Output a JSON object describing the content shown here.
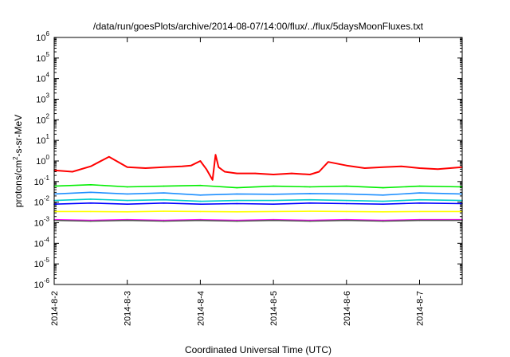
{
  "chart_data": {
    "type": "line",
    "title": "/data/run/goesPlots/archive/2014-08-07/14:00/flux/../flux/5daysMoonFluxes.txt",
    "xlabel": "Coordinated Universal Time (UTC)",
    "ylabel": {
      "prefix": "protons/cm",
      "superscript": "2",
      "suffix": "-s-sr-MeV"
    },
    "yscale": "log",
    "ylim": [
      1e-06,
      1000000.0
    ],
    "yticks": [
      {
        "base": "10",
        "exp": "-6",
        "value": 1e-06
      },
      {
        "base": "10",
        "exp": "-5",
        "value": 1e-05
      },
      {
        "base": "10",
        "exp": "-4",
        "value": 0.0001
      },
      {
        "base": "10",
        "exp": "-3",
        "value": 0.001
      },
      {
        "base": "10",
        "exp": "-2",
        "value": 0.01
      },
      {
        "base": "10",
        "exp": "-1",
        "value": 0.1
      },
      {
        "base": "10",
        "exp": "0",
        "value": 1
      },
      {
        "base": "10",
        "exp": "1",
        "value": 10
      },
      {
        "base": "10",
        "exp": "2",
        "value": 100
      },
      {
        "base": "10",
        "exp": "3",
        "value": 1000
      },
      {
        "base": "10",
        "exp": "4",
        "value": 10000
      },
      {
        "base": "10",
        "exp": "5",
        "value": 100000
      },
      {
        "base": "10",
        "exp": "6",
        "value": 1000000
      }
    ],
    "xlim": [
      "2014-08-02T00:00",
      "2014-08-07T14:00"
    ],
    "xticks": [
      {
        "label": "2014-8-2",
        "date": "2014-08-02"
      },
      {
        "label": "2014-8-3",
        "date": "2014-08-03"
      },
      {
        "label": "2014-8-4",
        "date": "2014-08-04"
      },
      {
        "label": "2014-8-5",
        "date": "2014-08-05"
      },
      {
        "label": "2014-8-6",
        "date": "2014-08-06"
      },
      {
        "label": "2014-8-7",
        "date": "2014-08-07"
      }
    ],
    "grid": false,
    "legend": "none",
    "series": [
      {
        "color": "#ff0000",
        "x": [
          "2014-08-02T00:00",
          "2014-08-02T06:00",
          "2014-08-02T12:00",
          "2014-08-02T18:00",
          "2014-08-03T00:00",
          "2014-08-03T06:00",
          "2014-08-03T12:00",
          "2014-08-03T18:00",
          "2014-08-03T21:00",
          "2014-08-04T00:00",
          "2014-08-04T02:00",
          "2014-08-04T04:00",
          "2014-08-04T05:00",
          "2014-08-04T06:00",
          "2014-08-04T08:00",
          "2014-08-04T12:00",
          "2014-08-04T18:00",
          "2014-08-05T00:00",
          "2014-08-05T06:00",
          "2014-08-05T12:00",
          "2014-08-05T15:00",
          "2014-08-05T18:00",
          "2014-08-06T00:00",
          "2014-08-06T06:00",
          "2014-08-06T12:00",
          "2014-08-06T18:00",
          "2014-08-07T00:00",
          "2014-08-07T06:00",
          "2014-08-07T14:00"
        ],
        "values": [
          0.35,
          0.3,
          0.55,
          1.6,
          0.5,
          0.45,
          0.5,
          0.55,
          0.6,
          1.0,
          0.4,
          0.12,
          2.0,
          0.5,
          0.3,
          0.25,
          0.25,
          0.22,
          0.25,
          0.22,
          0.3,
          0.9,
          0.6,
          0.45,
          0.5,
          0.55,
          0.45,
          0.4,
          0.5
        ]
      },
      {
        "color": "#00ee00",
        "x": [
          "2014-08-02T00:00",
          "2014-08-02T12:00",
          "2014-08-03T00:00",
          "2014-08-03T12:00",
          "2014-08-04T00:00",
          "2014-08-04T12:00",
          "2014-08-05T00:00",
          "2014-08-05T12:00",
          "2014-08-06T00:00",
          "2014-08-06T12:00",
          "2014-08-07T00:00",
          "2014-08-07T14:00"
        ],
        "values": [
          0.06,
          0.07,
          0.055,
          0.06,
          0.065,
          0.05,
          0.06,
          0.055,
          0.06,
          0.05,
          0.06,
          0.055
        ]
      },
      {
        "color": "#1e8fff",
        "x": [
          "2014-08-02T00:00",
          "2014-08-02T12:00",
          "2014-08-03T00:00",
          "2014-08-03T12:00",
          "2014-08-04T00:00",
          "2014-08-04T12:00",
          "2014-08-05T00:00",
          "2014-08-05T12:00",
          "2014-08-06T00:00",
          "2014-08-06T12:00",
          "2014-08-07T00:00",
          "2014-08-07T14:00"
        ],
        "values": [
          0.025,
          0.03,
          0.025,
          0.028,
          0.022,
          0.025,
          0.024,
          0.026,
          0.025,
          0.022,
          0.028,
          0.025
        ]
      },
      {
        "color": "#00cccc",
        "x": [
          "2014-08-02T00:00",
          "2014-08-02T12:00",
          "2014-08-03T00:00",
          "2014-08-03T12:00",
          "2014-08-04T00:00",
          "2014-08-04T12:00",
          "2014-08-05T00:00",
          "2014-08-05T12:00",
          "2014-08-06T00:00",
          "2014-08-06T12:00",
          "2014-08-07T00:00",
          "2014-08-07T14:00"
        ],
        "values": [
          0.012,
          0.014,
          0.012,
          0.013,
          0.011,
          0.012,
          0.012,
          0.013,
          0.012,
          0.011,
          0.013,
          0.012
        ]
      },
      {
        "color": "#0000ff",
        "x": [
          "2014-08-02T00:00",
          "2014-08-02T12:00",
          "2014-08-03T00:00",
          "2014-08-03T12:00",
          "2014-08-04T00:00",
          "2014-08-04T12:00",
          "2014-08-05T00:00",
          "2014-08-05T12:00",
          "2014-08-06T00:00",
          "2014-08-06T12:00",
          "2014-08-07T00:00",
          "2014-08-07T14:00"
        ],
        "values": [
          0.008,
          0.009,
          0.008,
          0.009,
          0.008,
          0.0085,
          0.008,
          0.009,
          0.0085,
          0.008,
          0.009,
          0.0085
        ]
      },
      {
        "color": "#ffff00",
        "x": [
          "2014-08-02T00:00",
          "2014-08-02T12:00",
          "2014-08-03T00:00",
          "2014-08-03T12:00",
          "2014-08-04T00:00",
          "2014-08-04T12:00",
          "2014-08-05T00:00",
          "2014-08-05T12:00",
          "2014-08-06T00:00",
          "2014-08-06T12:00",
          "2014-08-07T00:00",
          "2014-08-07T14:00"
        ],
        "values": [
          0.0035,
          0.0035,
          0.0034,
          0.0036,
          0.0035,
          0.0034,
          0.0035,
          0.0036,
          0.0035,
          0.0034,
          0.0035,
          0.0035
        ]
      },
      {
        "color": "#ff00ff",
        "x": [
          "2014-08-02T00:00",
          "2014-08-02T12:00",
          "2014-08-03T00:00",
          "2014-08-03T12:00",
          "2014-08-04T00:00",
          "2014-08-04T12:00",
          "2014-08-05T00:00",
          "2014-08-05T12:00",
          "2014-08-06T00:00",
          "2014-08-06T12:00",
          "2014-08-07T00:00",
          "2014-08-07T14:00"
        ],
        "values": [
          0.0014,
          0.0013,
          0.0014,
          0.0013,
          0.0014,
          0.0013,
          0.0014,
          0.0013,
          0.0014,
          0.0013,
          0.0014,
          0.0014
        ]
      },
      {
        "color": "#555555",
        "x": [
          "2014-08-02T00:00",
          "2014-08-02T12:00",
          "2014-08-03T00:00",
          "2014-08-03T12:00",
          "2014-08-04T00:00",
          "2014-08-04T12:00",
          "2014-08-05T00:00",
          "2014-08-05T12:00",
          "2014-08-06T00:00",
          "2014-08-06T12:00",
          "2014-08-07T00:00",
          "2014-08-07T14:00"
        ],
        "values": [
          0.0013,
          0.0012,
          0.0013,
          0.0012,
          0.0013,
          0.0012,
          0.0013,
          0.0012,
          0.0013,
          0.0012,
          0.0013,
          0.0013
        ]
      }
    ]
  }
}
